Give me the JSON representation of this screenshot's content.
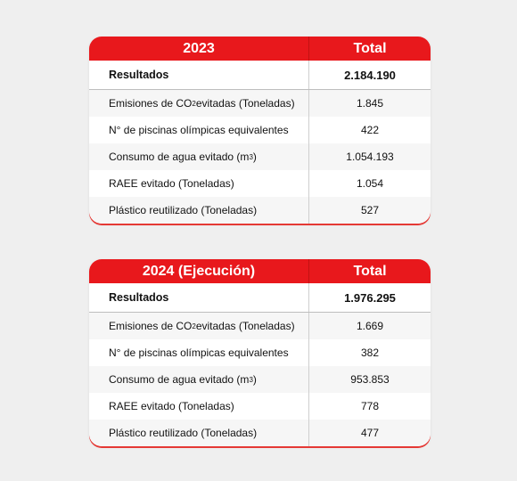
{
  "tables": [
    {
      "year": "2023",
      "total_label": "Total",
      "result_label": "Resultados",
      "result_value": "2.184.190",
      "rows": [
        {
          "pre": "Emisiones de CO",
          "sub": "2",
          "post": " evitadas (Toneladas)",
          "value": "1.845"
        },
        {
          "pre": "N° de piscinas olímpicas equivalentes",
          "sub": "",
          "post": "",
          "value": "422"
        },
        {
          "pre": "Consumo de agua evitado (m",
          "sup": "3",
          "post": ")",
          "value": "1.054.193"
        },
        {
          "pre": "RAEE evitado (Toneladas)",
          "sub": "",
          "post": "",
          "value": "1.054"
        },
        {
          "pre": "Plástico reutilizado (Toneladas)",
          "sub": "",
          "post": "",
          "value": "527"
        }
      ]
    },
    {
      "year": "2024 (Ejecución)",
      "total_label": "Total",
      "result_label": "Resultados",
      "result_value": "1.976.295",
      "rows": [
        {
          "pre": "Emisiones de CO",
          "sub": "2",
          "post": " evitadas (Toneladas)",
          "value": "1.669"
        },
        {
          "pre": "N° de piscinas olímpicas equivalentes",
          "sub": "",
          "post": "",
          "value": "382"
        },
        {
          "pre": "Consumo de agua evitado (m",
          "sup": "3",
          "post": ")",
          "value": "953.853"
        },
        {
          "pre": "RAEE evitado (Toneladas)",
          "sub": "",
          "post": "",
          "value": "778"
        },
        {
          "pre": "Plástico reutilizado (Toneladas)",
          "sub": "",
          "post": "",
          "value": "477"
        }
      ]
    }
  ]
}
